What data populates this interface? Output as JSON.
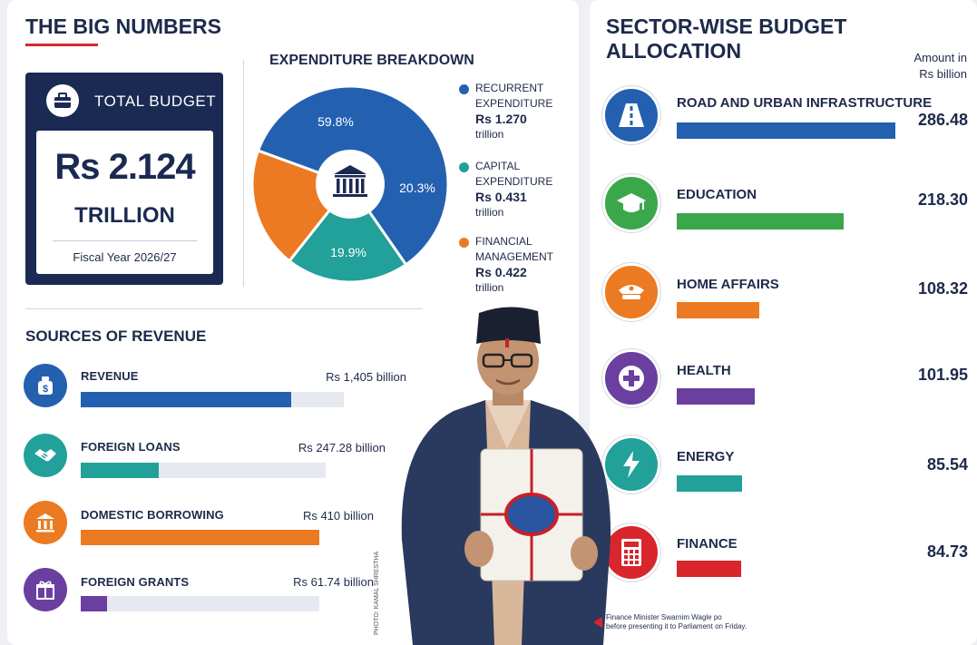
{
  "big_numbers": {
    "heading": "THE BIG NUMBERS",
    "total_label": "TOTAL BUDGET",
    "amount": "Rs 2.124",
    "unit": "TRILLION",
    "fiscal_year": "Fiscal Year 2026/27"
  },
  "expenditure": {
    "heading": "EXPENDITURE BREAKDOWN",
    "slices": [
      {
        "percent_label": "59.8%",
        "value": 59.8,
        "color": "#2460b0",
        "legend_line1": "RECURRENT",
        "legend_line2": "EXPENDITURE",
        "amount": "Rs 1.270",
        "unit": "trillion"
      },
      {
        "percent_label": "20.3%",
        "value": 20.3,
        "color": "#22a09a",
        "legend_line1": "CAPITAL",
        "legend_line2": "EXPENDITURE",
        "amount": "Rs 0.431",
        "unit": "trillion"
      },
      {
        "percent_label": "19.9%",
        "value": 19.9,
        "color": "#ec7a22",
        "legend_line1": "FINANCIAL",
        "legend_line2": "MANAGEMENT",
        "amount": "Rs 0.422",
        "unit": "trillion"
      }
    ]
  },
  "revenue": {
    "heading": "SOURCES OF REVENUE",
    "items": [
      {
        "label": "REVENUE",
        "amount": "Rs 1,405 billion",
        "fill": 0.8,
        "color": "#2460b0",
        "icon": "money-bag-icon"
      },
      {
        "label": "FOREIGN LOANS",
        "amount": "Rs 247.28 billion",
        "fill": 0.32,
        "color": "#22a09a",
        "icon": "handshake-icon"
      },
      {
        "label": "DOMESTIC BORROWING",
        "amount": "Rs 410 billion",
        "fill": 1.0,
        "color": "#ec7a22",
        "icon": "bank-icon"
      },
      {
        "label": "FOREIGN GRANTS",
        "amount": "Rs 61.74 billion",
        "fill": 0.11,
        "color": "#6a3fa0",
        "icon": "gift-icon"
      }
    ]
  },
  "sectors": {
    "heading": "SECTOR-WISE BUDGET ALLOCATION",
    "unit_line1": "Amount in",
    "unit_line2": "Rs billion",
    "items": [
      {
        "label": "ROAD AND URBAN INFRASTRUCTURE",
        "value": 286.48,
        "value_label": "286.48",
        "color": "#2460b0",
        "icon": "road-icon"
      },
      {
        "label": "EDUCATION",
        "value": 218.3,
        "value_label": "218.30",
        "color": "#3aa84a",
        "icon": "graduation-cap-icon"
      },
      {
        "label": "HOME AFFAIRS",
        "value": 108.32,
        "value_label": "108.32",
        "color": "#ec7a22",
        "icon": "police-cap-icon"
      },
      {
        "label": "HEALTH",
        "value": 101.95,
        "value_label": "101.95",
        "color": "#6a3fa0",
        "icon": "medical-cross-icon"
      },
      {
        "label": "ENERGY",
        "value": 85.54,
        "value_label": "85.54",
        "color": "#22a09a",
        "icon": "lightning-icon"
      },
      {
        "label": "FINANCE",
        "value": 84.73,
        "value_label": "84.73",
        "color": "#d8262c",
        "icon": "calculator-icon"
      }
    ]
  },
  "photo": {
    "caption_line1": "Finance Minister Swarnim Wagle po",
    "caption_line2": "before presenting it to Parliament on Friday.",
    "credit": "PHOTO: KAMAL SHRESTHA"
  }
}
